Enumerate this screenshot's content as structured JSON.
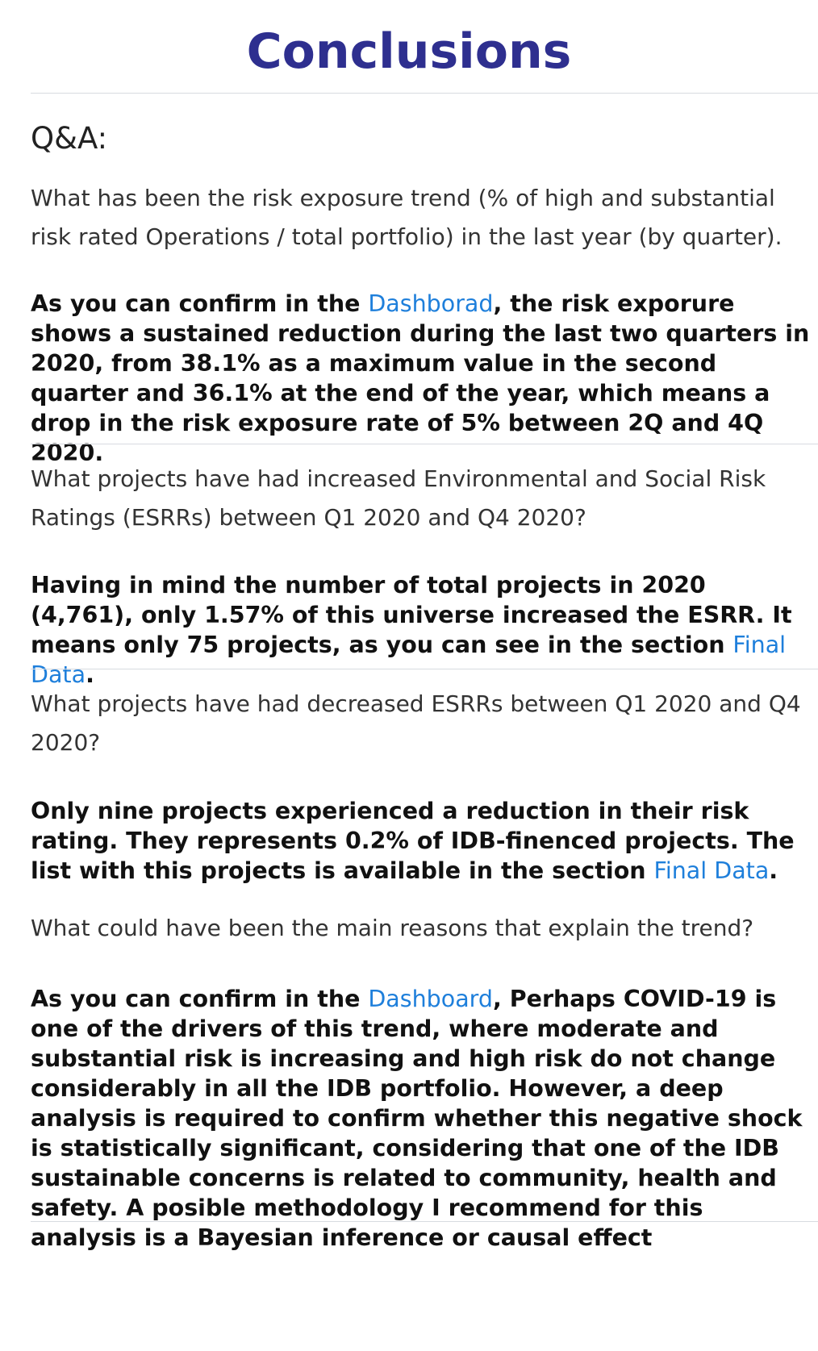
{
  "title": "Conclusions",
  "section_heading": "Q&A:",
  "qa": [
    {
      "question": "What has been the risk exposure trend (% of high and substantial risk rated Operations / total portfolio) in the last year (by quarter).",
      "answer_before": "As you can confirm in the ",
      "link": "Dashborad",
      "answer_after": ", the risk exporure shows a sustained reduction during the last two quarters in 2020, from 38.1% as a maximum value in the second quarter and 36.1% at the end of the year, which means a drop in the risk exposure rate of 5% between 2Q and 4Q 2020."
    },
    {
      "question": "What projects have had increased Environmental and Social Risk Ratings (ESRRs) between Q1 2020 and Q4 2020?",
      "answer_before": "Having in mind the number of total projects in 2020 (4,761), only 1.57% of this universe increased the ESRR. It means only 75 projects, as you can see in the section ",
      "link": "Final Data",
      "answer_after": "."
    },
    {
      "question": "What projects have had decreased ESRRs between Q1 2020 and Q4 2020?",
      "answer_before": "Only nine projects experienced a reduction in their risk rating. They represents 0.2% of IDB-finenced projects. The list with this projects is available in the section ",
      "link": "Final Data",
      "answer_after": "."
    },
    {
      "question": "What could have been the main reasons that explain the trend?",
      "answer_before": "As you can confirm in the ",
      "link": "Dashboard",
      "answer_after": ", Perhaps COVID-19 is one of the drivers of this trend, where moderate and substantial risk is increasing and high risk do not change considerably in all the IDB portfolio. However, a deep analysis is required to confirm whether this negative shock is statistically significant, considering that one of the IDB sustainable concerns is related to community, health and safety. A posible methodology I recommend for this analysis is a Bayesian inference or causal effect"
    }
  ],
  "colors": {
    "title": "#2e2f8f",
    "link": "#1e7fdb",
    "rule": "#d8dbe0"
  }
}
